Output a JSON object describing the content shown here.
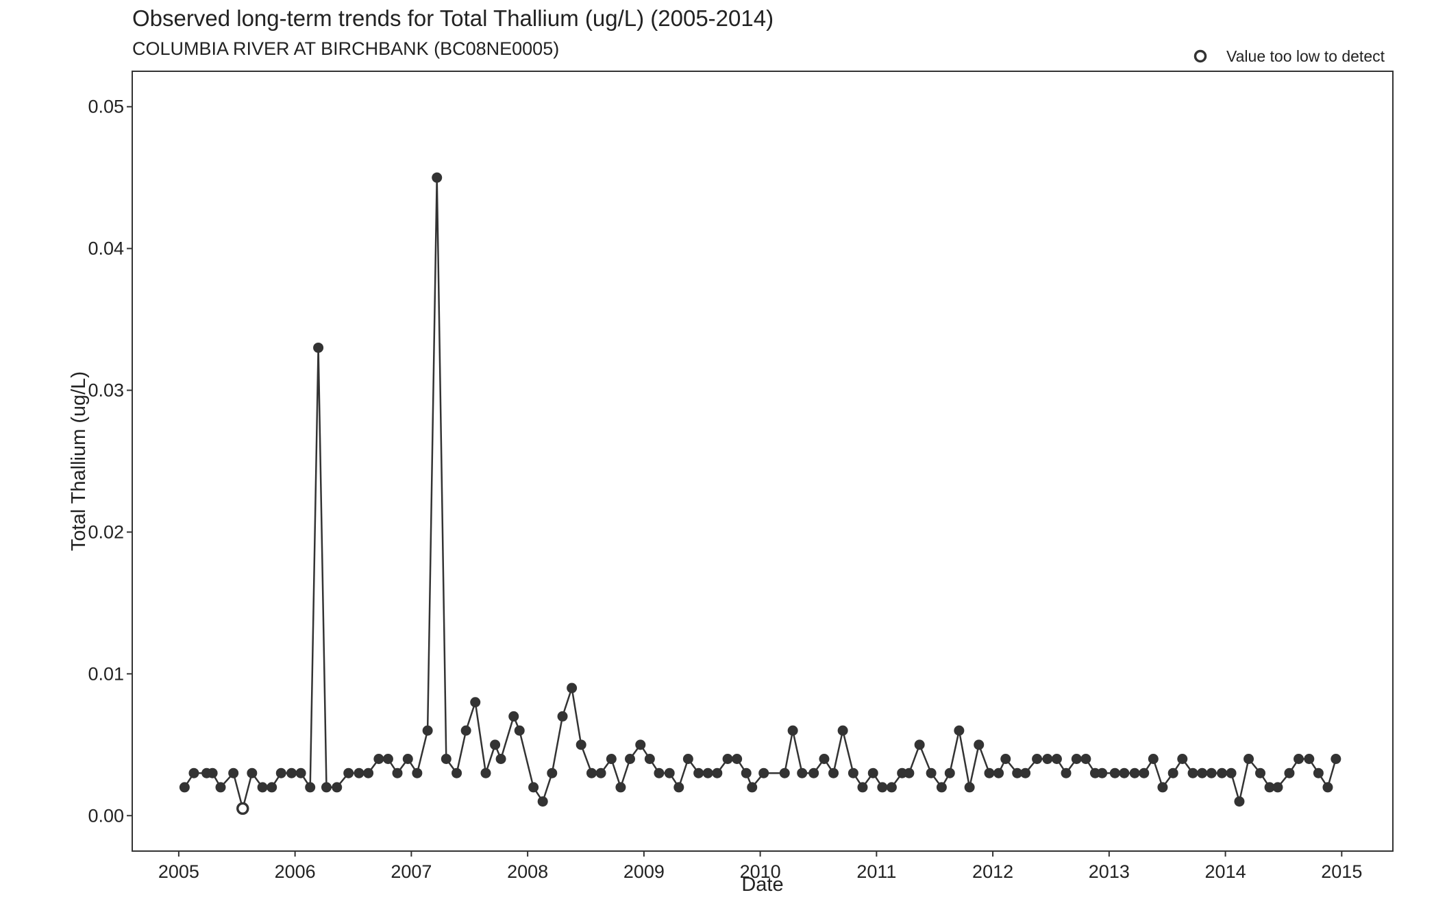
{
  "chart_data": {
    "type": "line",
    "title": "Observed long-term trends for Total Thallium (ug/L) (2005-2014)",
    "subtitle": "COLUMBIA RIVER AT BIRCHBANK (BC08NE0005)",
    "xlabel": "Date",
    "ylabel": "Total Thallium (ug/L)",
    "xlim": [
      2004.6,
      2015.44
    ],
    "ylim": [
      -0.0025,
      0.0525
    ],
    "x_ticks": [
      "2005",
      "2006",
      "2007",
      "2008",
      "2009",
      "2010",
      "2011",
      "2012",
      "2013",
      "2014",
      "2015"
    ],
    "y_ticks": [
      "0.00",
      "0.01",
      "0.02",
      "0.03",
      "0.04",
      "0.05"
    ],
    "grid": false,
    "legend": {
      "position": "top-right",
      "entries": [
        {
          "label": "Value too low to detect",
          "marker": "open-circle"
        }
      ]
    },
    "colors": {
      "line": "#333333",
      "point": "#333333"
    },
    "series": [
      {
        "x": [
          2005.05,
          2005.13,
          2005.24,
          2005.29,
          2005.36,
          2005.47,
          2005.55,
          2005.63,
          2005.72,
          2005.8,
          2005.88,
          2005.97,
          2006.05,
          2006.13,
          2006.2,
          2006.27,
          2006.36,
          2006.46,
          2006.55,
          2006.63,
          2006.72,
          2006.8,
          2006.88,
          2006.97,
          2007.05,
          2007.14,
          2007.22,
          2007.3,
          2007.39,
          2007.47,
          2007.55,
          2007.64,
          2007.72,
          2007.77,
          2007.88,
          2007.93,
          2008.05,
          2008.13,
          2008.21,
          2008.3,
          2008.38,
          2008.46,
          2008.55,
          2008.63,
          2008.72,
          2008.8,
          2008.88,
          2008.97,
          2009.05,
          2009.13,
          2009.22,
          2009.3,
          2009.38,
          2009.47,
          2009.55,
          2009.63,
          2009.72,
          2009.8,
          2009.88,
          2009.93,
          2010.03,
          2010.21,
          2010.28,
          2010.36,
          2010.46,
          2010.55,
          2010.63,
          2010.71,
          2010.8,
          2010.88,
          2010.97,
          2011.05,
          2011.13,
          2011.22,
          2011.28,
          2011.37,
          2011.47,
          2011.56,
          2011.63,
          2011.71,
          2011.8,
          2011.88,
          2011.97,
          2012.05,
          2012.11,
          2012.21,
          2012.28,
          2012.38,
          2012.47,
          2012.55,
          2012.63,
          2012.72,
          2012.8,
          2012.88,
          2012.94,
          2013.05,
          2013.13,
          2013.22,
          2013.3,
          2013.38,
          2013.46,
          2013.55,
          2013.63,
          2013.72,
          2013.8,
          2013.88,
          2013.97,
          2014.05,
          2014.12,
          2014.2,
          2014.3,
          2014.38,
          2014.45,
          2014.55,
          2014.63,
          2014.72,
          2014.8,
          2014.88,
          2014.95
        ],
        "y": [
          0.002,
          0.003,
          0.003,
          0.003,
          0.002,
          0.003,
          0.0005,
          0.003,
          0.002,
          0.002,
          0.003,
          0.003,
          0.003,
          0.002,
          0.033,
          0.002,
          0.002,
          0.003,
          0.003,
          0.003,
          0.004,
          0.004,
          0.003,
          0.004,
          0.003,
          0.006,
          0.045,
          0.004,
          0.003,
          0.006,
          0.008,
          0.003,
          0.005,
          0.004,
          0.007,
          0.006,
          0.002,
          0.001,
          0.003,
          0.007,
          0.009,
          0.005,
          0.003,
          0.003,
          0.004,
          0.002,
          0.004,
          0.005,
          0.004,
          0.003,
          0.003,
          0.002,
          0.004,
          0.003,
          0.003,
          0.003,
          0.004,
          0.004,
          0.003,
          0.002,
          0.003,
          0.003,
          0.006,
          0.003,
          0.003,
          0.004,
          0.003,
          0.006,
          0.003,
          0.002,
          0.003,
          0.002,
          0.002,
          0.003,
          0.003,
          0.005,
          0.003,
          0.002,
          0.003,
          0.006,
          0.002,
          0.005,
          0.003,
          0.003,
          0.004,
          0.003,
          0.003,
          0.004,
          0.004,
          0.004,
          0.003,
          0.004,
          0.004,
          0.003,
          0.003,
          0.003,
          0.003,
          0.003,
          0.003,
          0.004,
          0.002,
          0.003,
          0.004,
          0.003,
          0.003,
          0.003,
          0.003,
          0.003,
          0.001,
          0.004,
          0.003,
          0.002,
          0.002,
          0.003,
          0.004,
          0.004,
          0.003,
          0.002,
          0.004
        ],
        "below_detection": [
          6
        ]
      }
    ]
  }
}
